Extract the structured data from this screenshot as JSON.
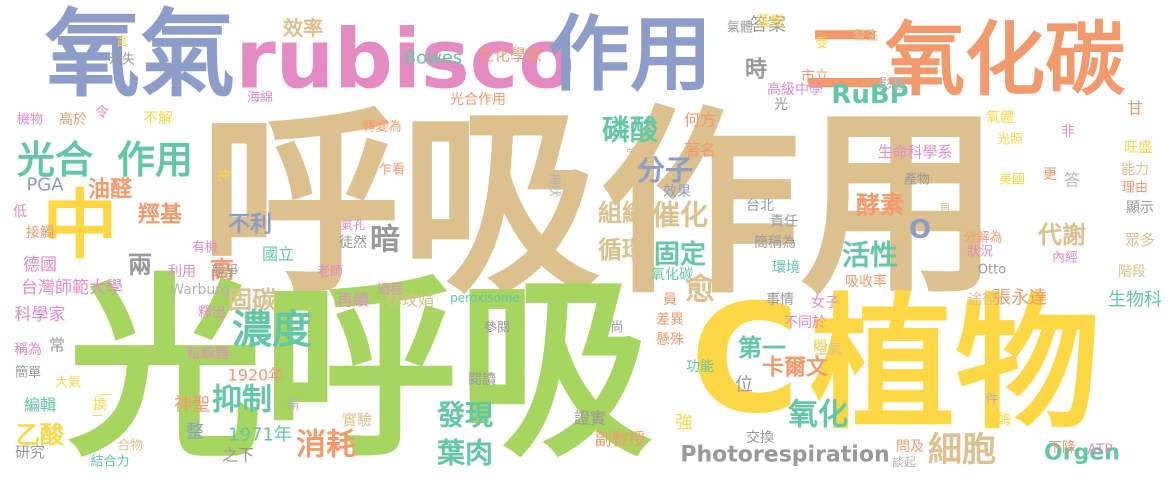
{
  "words": [
    "呼吸作用",
    "光呼吸",
    "C",
    "植物",
    "氧氣",
    "rubisco",
    "作用",
    "二氧化碳",
    "中",
    "光合",
    "作用",
    "濃度",
    "磷酸",
    "分子",
    "RuBP",
    "催化",
    "固定",
    "愈",
    "暗",
    "抑制",
    "消耗",
    "氧化",
    "細胞",
    "發現",
    "葉肉",
    "活性",
    "代謝",
    "酵素",
    "O",
    "循環",
    "組織",
    "不利",
    "油醛",
    "羥基",
    "兩",
    "高",
    "固碳",
    "台灣師範大學",
    "德國",
    "科學家",
    "乙酸",
    "第一",
    "卡爾文",
    "Photorespiration",
    "Orgen",
    "生物科",
    "效率",
    "時",
    "答案",
    "高級中學",
    "市立",
    "影響",
    "藻類",
    "Bowes",
    "生化學家",
    "光合作用",
    "何方",
    "著名",
    "當年",
    "生命科學系",
    "光照",
    "氧體",
    "非",
    "甘",
    "旺盛",
    "能力",
    "理由",
    "美國",
    "更",
    "答",
    "產物",
    "顯示",
    "眾多",
    "階段",
    "張永達",
    "途徑",
    "女子",
    "吸收率",
    "不同於",
    "空氣",
    "問",
    "位",
    "強",
    "副教授",
    "證實",
    "實驗",
    "閱讀",
    "參閱",
    "尚",
    "差異",
    "懸殊",
    "功能",
    "交換",
    "問及",
    "ATP",
    "談起",
    "下降",
    "酶",
    "件",
    "1920年",
    "1971年",
    "神聖",
    "整",
    "之下",
    "研究",
    "結合力",
    "合物",
    "編輯",
    "大氣",
    "換",
    "稱為",
    "簡單",
    "常",
    "粒線體",
    "釋出",
    "PGA",
    "低",
    "接觸",
    "機物",
    "高於",
    "令",
    "不解",
    "海綿",
    "轉變為",
    "乍看",
    "化",
    "氣孔",
    "徒然",
    "有機",
    "利用",
    "競爭",
    "國立",
    "老師",
    "林玫娟",
    "再續",
    "過程",
    "peroxisome",
    "Warburg",
    "氧化碳",
    "員",
    "事情",
    "環境",
    "簡稱為",
    "責任",
    "台北",
    "效果",
    "柵狀",
    "分解為",
    "狀況",
    "內經",
    "Otto",
    "具",
    "氣體",
    "發生",
    "受",
    "言",
    "流失",
    "光",
    "一",
    "二",
    "請"
  ]
}
